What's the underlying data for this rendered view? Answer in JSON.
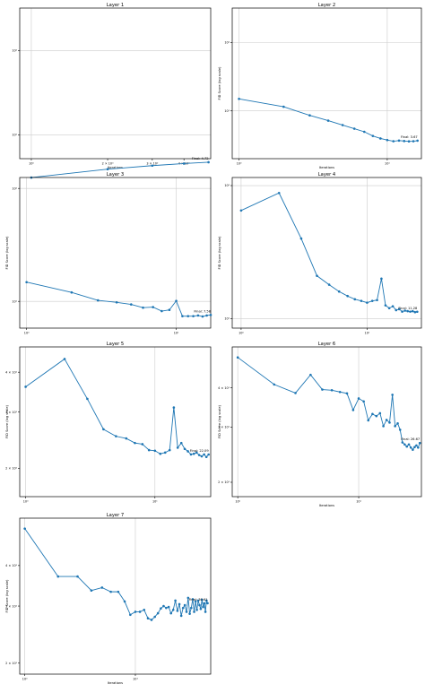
{
  "chart_data": [
    {
      "type": "line",
      "title": "Layer 1",
      "xlabel": "Iterations",
      "ylabel": "",
      "xscale": "log",
      "yscale": "log",
      "grid": true,
      "xlim": [
        0.9,
        5.1
      ],
      "ylim": [
        5.2,
        320
      ],
      "xticks": [
        {
          "v": 1,
          "label": "10⁰"
        },
        {
          "v": 2,
          "label": "2 × 10⁰"
        },
        {
          "v": 3,
          "label": "3 × 10⁰"
        },
        {
          "v": 4,
          "label": "4 × 10⁰"
        }
      ],
      "yticks": [
        {
          "v": 10,
          "label": "10¹"
        },
        {
          "v": 100,
          "label": "10²"
        }
      ],
      "annotation": "Final: 4.72",
      "final": 4.72,
      "x": [
        1,
        2,
        3,
        4,
        5
      ],
      "values": [
        3.1,
        3.9,
        4.3,
        4.55,
        4.72
      ]
    },
    {
      "type": "line",
      "title": "Layer 2",
      "xlabel": "Iterations",
      "ylabel": "FID Score (log scale)",
      "xscale": "log",
      "yscale": "log",
      "grid": true,
      "xlim": [
        0.9,
        17
      ],
      "ylim": [
        2.0,
        320
      ],
      "xticks": [
        {
          "v": 1,
          "label": "10⁰"
        },
        {
          "v": 10,
          "label": "10¹"
        }
      ],
      "yticks": [
        {
          "v": 10,
          "label": "10¹"
        },
        {
          "v": 100,
          "label": "10²"
        }
      ],
      "annotation": "Final: 3.67",
      "final": 3.67,
      "x": [
        1,
        2,
        3,
        4,
        5,
        6,
        7,
        8,
        9,
        10,
        11,
        12,
        13,
        14,
        15,
        16
      ],
      "values": [
        15,
        11.5,
        8.6,
        7.2,
        6.2,
        5.5,
        4.95,
        4.3,
        3.95,
        3.75,
        3.6,
        3.68,
        3.62,
        3.58,
        3.6,
        3.67
      ]
    },
    {
      "type": "line",
      "title": "Layer 3",
      "xlabel": "",
      "ylabel": "FID Score (log scale)",
      "xscale": "log",
      "yscale": "log",
      "grid": true,
      "xlim": [
        0.9,
        17
      ],
      "ylim": [
        5.8,
        125
      ],
      "xticks": [
        {
          "v": 1,
          "label": "10⁰"
        },
        {
          "v": 10,
          "label": "10¹"
        }
      ],
      "yticks": [
        {
          "v": 10,
          "label": "10¹"
        },
        {
          "v": 100,
          "label": "10²"
        }
      ],
      "annotation": "Final: 7.58",
      "final": 7.58,
      "x": [
        1,
        2,
        3,
        4,
        5,
        6,
        7,
        8,
        9,
        10,
        11,
        12,
        13,
        14,
        15,
        16,
        17
      ],
      "values": [
        14.8,
        12,
        10.2,
        9.8,
        9.4,
        8.8,
        8.9,
        8.2,
        8.4,
        10.1,
        7.4,
        7.4,
        7.4,
        7.5,
        7.35,
        7.5,
        7.58
      ]
    },
    {
      "type": "line",
      "title": "Layer 4",
      "xlabel": "",
      "ylabel": "FID Score (log scale)",
      "xscale": "log",
      "yscale": "log",
      "grid": true,
      "xlim": [
        0.85,
        27
      ],
      "ylim": [
        8.5,
        115
      ],
      "xticks": [
        {
          "v": 1,
          "label": "10⁰"
        },
        {
          "v": 10,
          "label": "10¹"
        }
      ],
      "yticks": [
        {
          "v": 10,
          "label": "10¹"
        },
        {
          "v": 100,
          "label": "10²"
        }
      ],
      "annotation": "Final: 11.28",
      "final": 11.28,
      "x": [
        1,
        2,
        3,
        4,
        5,
        6,
        7,
        8,
        9,
        10,
        11,
        12,
        13,
        14,
        15,
        16,
        17,
        18,
        19,
        20,
        21,
        22,
        23,
        24,
        25
      ],
      "values": [
        65,
        88,
        40,
        21,
        18,
        16,
        14.8,
        14,
        13.6,
        13.2,
        13.6,
        13.8,
        20,
        12.6,
        12,
        12.4,
        11.6,
        11.8,
        11.3,
        11.5,
        11.4,
        11.3,
        11.4,
        11.2,
        11.28
      ]
    },
    {
      "type": "line",
      "title": "Layer 5",
      "xlabel": "",
      "ylabel": "FID Score (log scale)",
      "xscale": "log",
      "yscale": "log",
      "grid": true,
      "xlim": [
        0.9,
        27
      ],
      "ylim": [
        16.3,
        48
      ],
      "xticks": [
        {
          "v": 1,
          "label": "10⁰"
        },
        {
          "v": 10,
          "label": "10¹"
        }
      ],
      "yticks": [
        {
          "v": 20,
          "label": "2 × 10¹"
        },
        {
          "v": 30,
          "label": "3 × 10¹"
        },
        {
          "v": 40,
          "label": "4 × 10¹"
        }
      ],
      "annotation": "Final: 22.09",
      "final": 22.09,
      "x": [
        1,
        2,
        3,
        4,
        5,
        6,
        7,
        8,
        9,
        10,
        11,
        12,
        13,
        14,
        15,
        16,
        17,
        18,
        19,
        20,
        21,
        22,
        23,
        24,
        25,
        26
      ],
      "values": [
        36,
        44,
        33,
        26.5,
        25.2,
        24.8,
        24,
        23.8,
        22.8,
        22.7,
        22.2,
        22.4,
        22.8,
        31,
        23.2,
        24,
        23,
        22.6,
        22.1,
        22.2,
        22.4,
        22.0,
        21.8,
        22.1,
        21.7,
        22.09
      ]
    },
    {
      "type": "line",
      "title": "Layer 6",
      "xlabel": "Iterations",
      "ylabel": "FID Score (log scale)",
      "xscale": "log",
      "yscale": "log",
      "grid": true,
      "xlim": [
        0.9,
        33
      ],
      "ylim": [
        18,
        54
      ],
      "xticks": [
        {
          "v": 1,
          "label": "10⁰"
        },
        {
          "v": 10,
          "label": "10¹"
        }
      ],
      "yticks": [
        {
          "v": 20,
          "label": "2 × 10¹"
        },
        {
          "v": 30,
          "label": "3 × 10¹"
        },
        {
          "v": 40,
          "label": "4 × 10¹"
        }
      ],
      "annotation": "Final: 26.67",
      "final": 26.67,
      "x": [
        1,
        2,
        3,
        4,
        5,
        6,
        7,
        8,
        9,
        10,
        11,
        12,
        13,
        14,
        15,
        16,
        17,
        18,
        19,
        20,
        21,
        22,
        23,
        24,
        25,
        26,
        27,
        28,
        29,
        30,
        31,
        32
      ],
      "values": [
        50,
        41,
        38.5,
        44,
        39.5,
        39.3,
        38.8,
        38.4,
        34,
        37,
        36.2,
        31.5,
        33,
        32.5,
        33.2,
        30.2,
        31.6,
        31.0,
        38,
        30.2,
        30.8,
        29.4,
        26.8,
        26.4,
        26.0,
        26.4,
        25.8,
        25.4,
        25.9,
        26.2,
        25.8,
        26.67
      ]
    },
    {
      "type": "line",
      "title": "Layer 7",
      "xlabel": "Iterations",
      "ylabel": "FID Score (log scale)",
      "xscale": "log",
      "yscale": "log",
      "grid": true,
      "xlim": [
        0.9,
        48
      ],
      "ylim": [
        18.5,
        56
      ],
      "xticks": [
        {
          "v": 1,
          "label": "10⁰"
        },
        {
          "v": 10,
          "label": "10¹"
        }
      ],
      "yticks": [
        {
          "v": 20,
          "label": "2 × 10¹"
        },
        {
          "v": 30,
          "label": "3 × 10¹"
        },
        {
          "v": 40,
          "label": "4 × 10¹"
        }
      ],
      "annotation": "Final: 30.61",
      "final": 30.61,
      "x": [
        1,
        2,
        3,
        4,
        5,
        6,
        7,
        8,
        9,
        10,
        11,
        12,
        13,
        14,
        15,
        16,
        17,
        18,
        19,
        20,
        21,
        22,
        23,
        24,
        25,
        26,
        27,
        28,
        29,
        30,
        31,
        32,
        33,
        34,
        35,
        36,
        37,
        38,
        39,
        40,
        41,
        42,
        43,
        44,
        45
      ],
      "values": [
        52,
        37,
        37,
        33.5,
        34.2,
        33.2,
        33.2,
        31,
        28.2,
        28.8,
        28.8,
        29.2,
        27.5,
        27.2,
        27.8,
        28.5,
        29.5,
        30.0,
        29.6,
        29.8,
        28.5,
        29.2,
        31.2,
        29.0,
        30.4,
        28.0,
        29.6,
        30.2,
        28.8,
        31.8,
        28.4,
        29.6,
        31.5,
        28.8,
        31.0,
        29.2,
        31.2,
        30.2,
        29.4,
        31.4,
        29.8,
        30.6,
        28.8,
        31.2,
        30.61
      ]
    }
  ],
  "style": {
    "line_color": "#1f77b4",
    "grid_color": "#cccccc",
    "axis_color": "#000000",
    "text_color": "#000000"
  }
}
